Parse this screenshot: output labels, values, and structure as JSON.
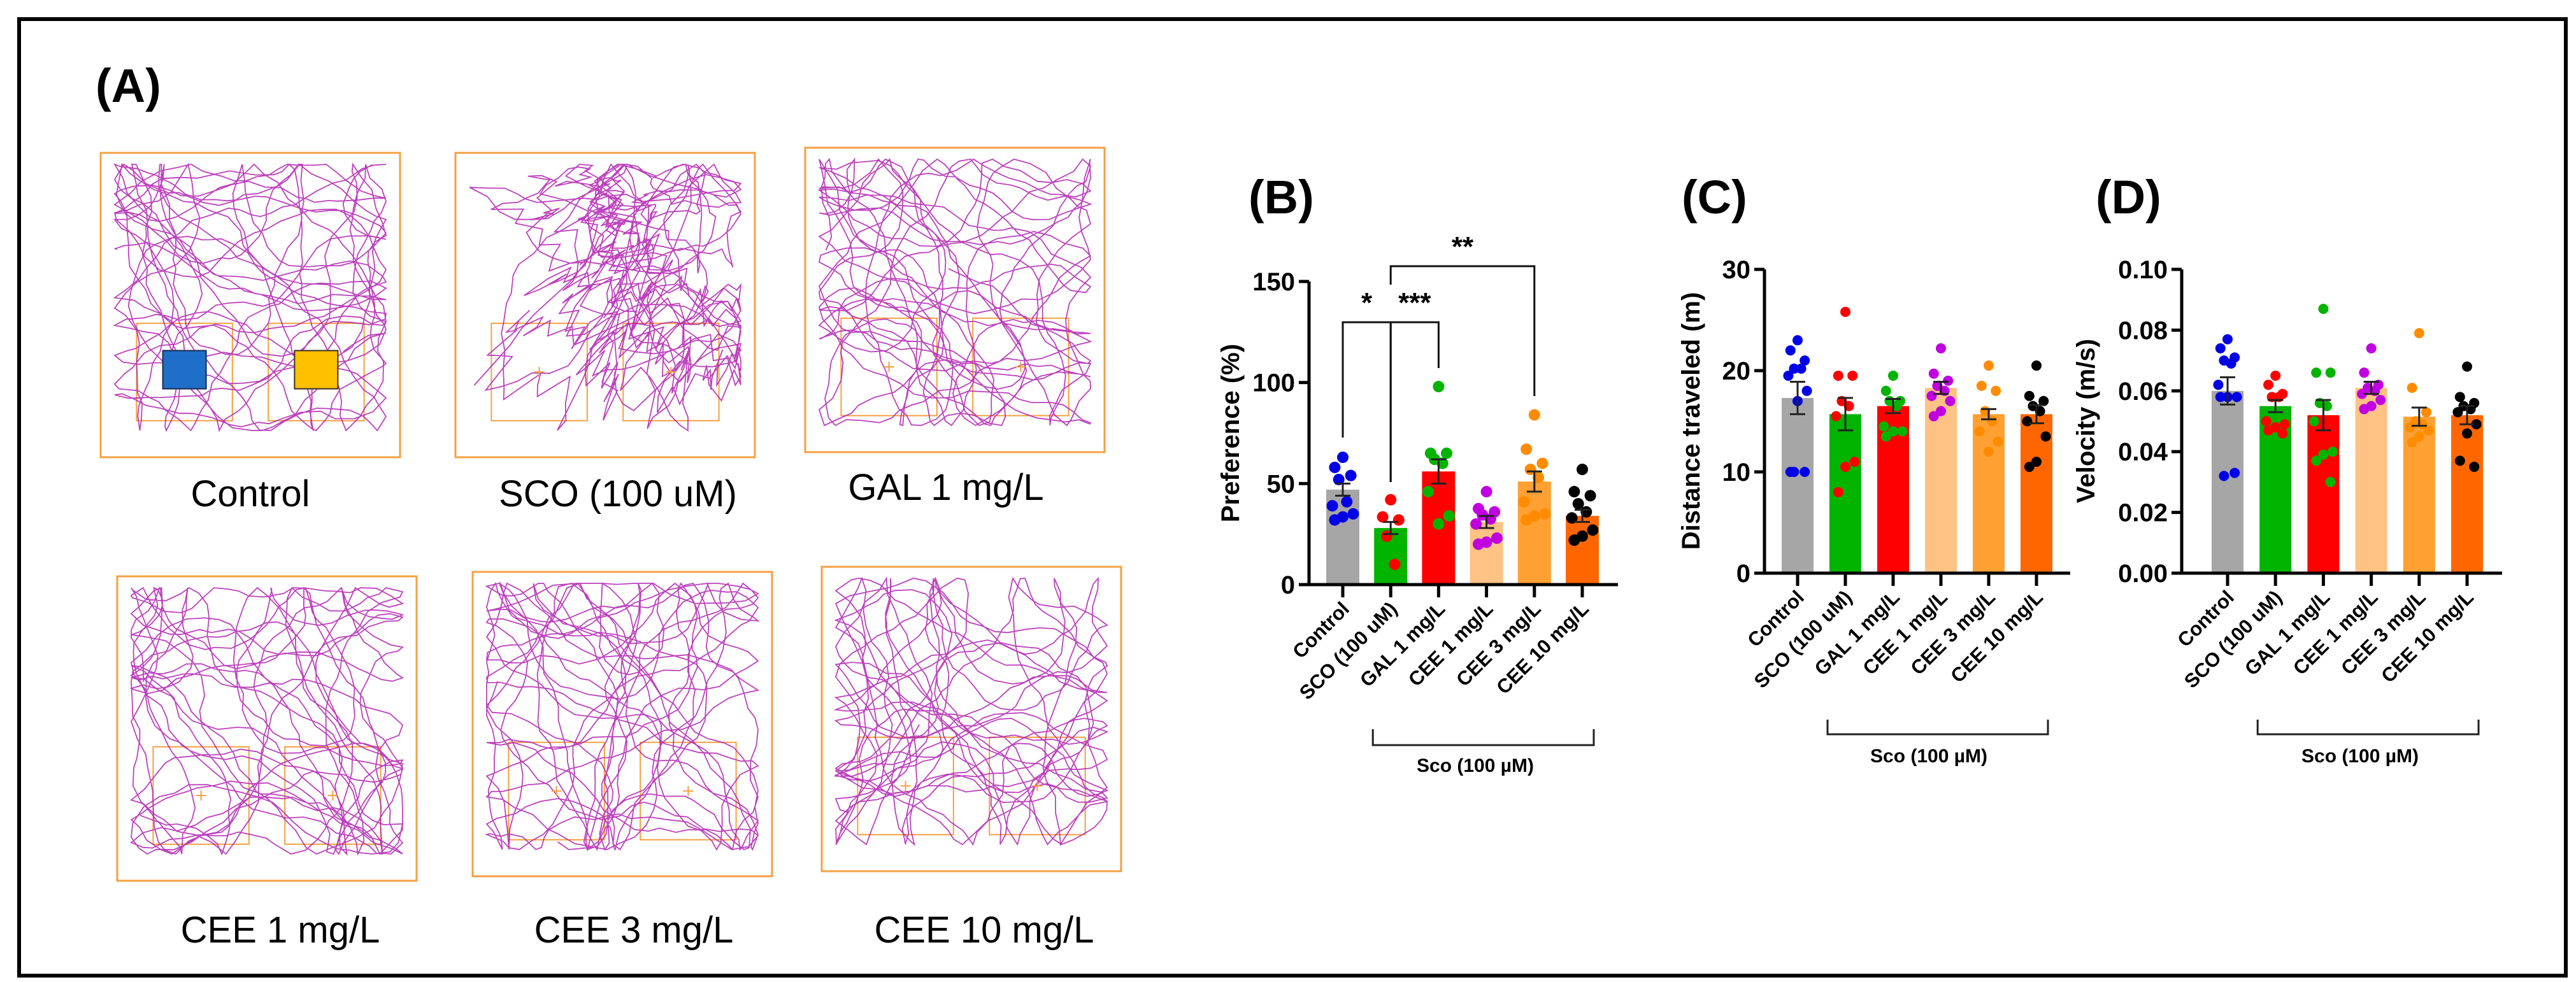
{
  "panel_a": {
    "letter": "(A)",
    "groups": [
      {
        "label": "Control",
        "legend_colors": [
          "#1f6fc8",
          "#ffc000"
        ]
      },
      {
        "label": "SCO (100 uM)"
      },
      {
        "label": "GAL 1 mg/L"
      },
      {
        "label": "CEE 1 mg/L"
      },
      {
        "label": "CEE 3 mg/L"
      },
      {
        "label": "CEE 10 mg/L"
      }
    ],
    "colors": {
      "arena": "#f5a040",
      "track": "#b020b0"
    }
  },
  "chart_data": [
    {
      "letter": "(B)",
      "type": "bar",
      "title": "",
      "xlabel": "",
      "ylabel": "Preference (%)",
      "ylim": [
        0,
        150
      ],
      "yticks": [
        0,
        50,
        100,
        150
      ],
      "ytick_labels": [
        "0",
        "50",
        "100",
        "150"
      ],
      "categories": [
        "Control",
        "SCO (100 uM)",
        "GAL 1 mg/L",
        "CEE 1 mg/L",
        "CEE 3 mg/L",
        "CEE 10 mg/L"
      ],
      "bar_colors": [
        "#a6a6a6",
        "#00b400",
        "#ff0000",
        "#ffc285",
        "#ffa033",
        "#ff6600"
      ],
      "point_colors": [
        "#0000e6",
        "#ff0000",
        "#00b400",
        "#c000e0",
        "#ff8c00",
        "#000000"
      ],
      "means": [
        47,
        28,
        56,
        31,
        51,
        34
      ],
      "sem": [
        3,
        3,
        6,
        3,
        5,
        3
      ],
      "points": [
        [
          63,
          58,
          54,
          52,
          41,
          39,
          35,
          33.5,
          32
        ],
        [
          42,
          33.5,
          32,
          24,
          10
        ],
        [
          98,
          65,
          65,
          62,
          60,
          46,
          34,
          30
        ],
        [
          46,
          37.6,
          36,
          34.5,
          32.5,
          30,
          23,
          21,
          20
        ],
        [
          84,
          67,
          60,
          57,
          53,
          41,
          35,
          34,
          32
        ],
        [
          57,
          46,
          44,
          40,
          36,
          33,
          27,
          24,
          22
        ]
      ],
      "significance": [
        {
          "from": 0,
          "to": 1,
          "label": "*"
        },
        {
          "from": 1,
          "to": 2,
          "label": "***"
        },
        {
          "from": 1,
          "to": 4,
          "label": "**"
        }
      ],
      "group_bracket": {
        "from": 1,
        "to": 5,
        "label": "Sco (100 µM)"
      }
    },
    {
      "letter": "(C)",
      "type": "bar",
      "title": "",
      "xlabel": "",
      "ylabel": "Distance traveled (m)",
      "ylim": [
        0,
        30
      ],
      "yticks": [
        0,
        10,
        20,
        30
      ],
      "ytick_labels": [
        "0",
        "10",
        "20",
        "30"
      ],
      "categories": [
        "Control",
        "SCO (100 uM)",
        "GAL 1 mg/L",
        "CEE 1 mg/L",
        "CEE 3 mg/L",
        "CEE 10 mg/L"
      ],
      "bar_colors": [
        "#a6a6a6",
        "#00b400",
        "#ff0000",
        "#ffc285",
        "#ffa033",
        "#ff6600"
      ],
      "point_colors": [
        "#0000e6",
        "#ff0000",
        "#00b400",
        "#c000e0",
        "#ff8c00",
        "#000000"
      ],
      "means": [
        17.3,
        15.7,
        16.5,
        18.3,
        15.7,
        15.7
      ],
      "sem": [
        1.6,
        1.6,
        0.7,
        0.6,
        0.5,
        0.9
      ],
      "points": [
        [
          23,
          22,
          21,
          20.2,
          20.2,
          19.5,
          18,
          17,
          10,
          10,
          10
        ],
        [
          25.8,
          19.5,
          19.5,
          17,
          16.5,
          15.5,
          11,
          10.5,
          8
        ],
        [
          19.5,
          18,
          17,
          17,
          16.5,
          14.5,
          14,
          14,
          13.5
        ],
        [
          22.2,
          19.7,
          19,
          18.5,
          18,
          17.5,
          17,
          16,
          15.5
        ],
        [
          20.5,
          18.5,
          18,
          16,
          15,
          14,
          13,
          12
        ],
        [
          20.5,
          17.5,
          17,
          16.5,
          16,
          15,
          13.5,
          11,
          10.5
        ]
      ],
      "significance": [],
      "group_bracket": {
        "from": 1,
        "to": 5,
        "label": "Sco (100 µM)"
      }
    },
    {
      "letter": "(D)",
      "type": "bar",
      "title": "",
      "xlabel": "",
      "ylabel": "Velocity (m/s)",
      "ylim": [
        0,
        0.1
      ],
      "yticks": [
        0,
        0.02,
        0.04,
        0.06,
        0.08,
        0.1
      ],
      "ytick_labels": [
        "0.00",
        "0.02",
        "0.04",
        "0.06",
        "0.08",
        "0.10"
      ],
      "categories": [
        "Control",
        "SCO (100 uM)",
        "GAL 1 mg/L",
        "CEE 1 mg/L",
        "CEE 3 mg/L",
        "CEE 10 mg/L"
      ],
      "bar_colors": [
        "#a6a6a6",
        "#00b400",
        "#ff0000",
        "#ffc285",
        "#ffa033",
        "#ff6600"
      ],
      "point_colors": [
        "#0000e6",
        "#ff0000",
        "#00b400",
        "#c000e0",
        "#ff8c00",
        "#000000"
      ],
      "means": [
        0.06,
        0.055,
        0.052,
        0.061,
        0.0515,
        0.052
      ],
      "sem": [
        0.0045,
        0.002,
        0.005,
        0.002,
        0.003,
        0.003
      ],
      "points": [
        [
          0.077,
          0.074,
          0.071,
          0.07,
          0.069,
          0.062,
          0.058,
          0.058,
          0.058,
          0.033,
          0.032
        ],
        [
          0.065,
          0.062,
          0.059,
          0.058,
          0.058,
          0.05,
          0.049,
          0.048,
          0.047,
          0.046
        ],
        [
          0.087,
          0.066,
          0.066,
          0.056,
          0.055,
          0.05,
          0.04,
          0.039,
          0.037,
          0.03
        ],
        [
          0.074,
          0.066,
          0.062,
          0.061,
          0.06,
          0.059,
          0.057,
          0.055,
          0.054
        ],
        [
          0.079,
          0.061,
          0.053,
          0.05,
          0.049,
          0.048,
          0.047,
          0.045,
          0.043
        ],
        [
          0.068,
          0.058,
          0.056,
          0.055,
          0.054,
          0.053,
          0.049,
          0.046,
          0.037,
          0.035
        ]
      ],
      "significance": [],
      "group_bracket": {
        "from": 1,
        "to": 5,
        "label": "Sco (100 µM)"
      }
    }
  ]
}
